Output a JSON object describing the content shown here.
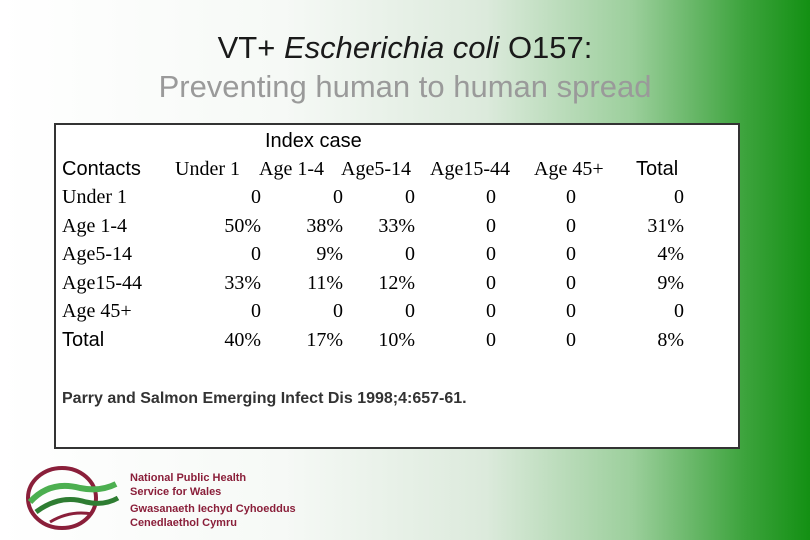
{
  "title": {
    "line1_prefix": "VT+ ",
    "line1_italic": "Escherichia coli",
    "line1_suffix": " O157:",
    "line2": "Preventing human to human spread"
  },
  "table": {
    "index_header": "Index case",
    "columns": [
      "Contacts",
      "Under 1",
      "Age 1-4",
      "Age5-14",
      "Age15-44",
      "Age 45+",
      "Total"
    ],
    "rows": [
      [
        "Under 1",
        "0",
        "0",
        "0",
        "0",
        "0",
        "0"
      ],
      [
        "Age 1-4",
        "50%",
        "38%",
        "33%",
        "0",
        "0",
        "31%"
      ],
      [
        "Age5-14",
        "0",
        "9%",
        "0",
        "0",
        "0",
        "4%"
      ],
      [
        "Age15-44",
        "33%",
        "11%",
        "12%",
        "0",
        "0",
        "9%"
      ],
      [
        "Age 45+",
        "0",
        "0",
        "0",
        "0",
        "0",
        "0"
      ],
      [
        "Total",
        "40%",
        "17%",
        "10%",
        "0",
        "0",
        "8%"
      ]
    ]
  },
  "citation": "Parry and Salmon  Emerging Infect Dis 1998;4:657-61.",
  "logo": {
    "line1": "National Public Health",
    "line2": "Service for Wales",
    "line3": "Gwasanaeth Iechyd Cyhoeddus",
    "line4": "Cenedlaethol Cymru"
  },
  "colors": {
    "logo_maroon": "#8a1f3a",
    "logo_green": "#4caf50",
    "background_green": "#139013"
  }
}
